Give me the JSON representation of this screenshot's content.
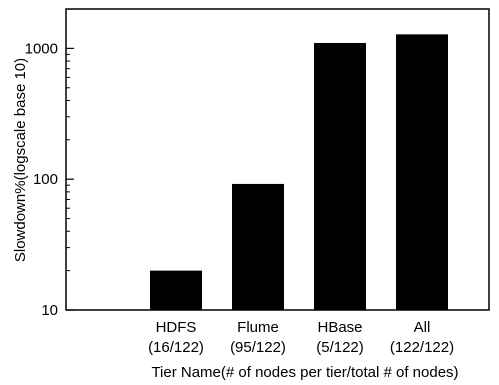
{
  "chart_data": {
    "type": "bar",
    "title": "",
    "xlabel": "Tier Name(# of nodes per tier/total # of nodes)",
    "ylabel": "Slowdown%(logscale base 10)",
    "yscale": "log",
    "ylim": [
      10,
      2000
    ],
    "yticks": [
      10,
      100,
      1000
    ],
    "ytick_labels": [
      "10",
      "100",
      "1000"
    ],
    "grid": false,
    "legend": "none",
    "bar_color": "#000000",
    "categories": [
      {
        "name": "HDFS",
        "detail": "(16/122)"
      },
      {
        "name": "Flume",
        "detail": "(95/122)"
      },
      {
        "name": "HBase",
        "detail": "(5/122)"
      },
      {
        "name": "All",
        "detail": "(122/122)"
      }
    ],
    "values": [
      20,
      92,
      1100,
      1280
    ]
  }
}
